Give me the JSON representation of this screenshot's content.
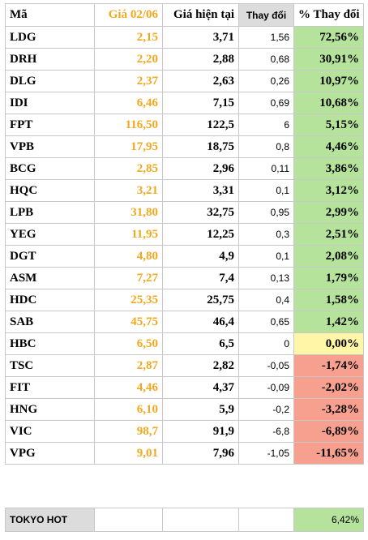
{
  "header": {
    "code": "Mã",
    "old_price": "Giá 02/06",
    "current_price": "Giá hiện tại",
    "change": "Thay đổi",
    "pct_change": "% Thay đổi"
  },
  "rows": [
    {
      "code": "LDG",
      "old": "2,15",
      "cur": "3,71",
      "chg": "1,56",
      "pct": "72,56%",
      "status": "pos"
    },
    {
      "code": "DRH",
      "old": "2,20",
      "cur": "2,88",
      "chg": "0,68",
      "pct": "30,91%",
      "status": "pos"
    },
    {
      "code": "DLG",
      "old": "2,37",
      "cur": "2,63",
      "chg": "0,26",
      "pct": "10,97%",
      "status": "pos"
    },
    {
      "code": "IDI",
      "old": "6,46",
      "cur": "7,15",
      "chg": "0,69",
      "pct": "10,68%",
      "status": "pos"
    },
    {
      "code": "FPT",
      "old": "116,50",
      "cur": "122,5",
      "chg": "6",
      "pct": "5,15%",
      "status": "pos"
    },
    {
      "code": "VPB",
      "old": "17,95",
      "cur": "18,75",
      "chg": "0,8",
      "pct": "4,46%",
      "status": "pos"
    },
    {
      "code": "BCG",
      "old": "2,85",
      "cur": "2,96",
      "chg": "0,11",
      "pct": "3,86%",
      "status": "pos"
    },
    {
      "code": "HQC",
      "old": "3,21",
      "cur": "3,31",
      "chg": "0,1",
      "pct": "3,12%",
      "status": "pos"
    },
    {
      "code": "LPB",
      "old": "31,80",
      "cur": "32,75",
      "chg": "0,95",
      "pct": "2,99%",
      "status": "pos"
    },
    {
      "code": "YEG",
      "old": "11,95",
      "cur": "12,25",
      "chg": "0,3",
      "pct": "2,51%",
      "status": "pos"
    },
    {
      "code": "DGT",
      "old": "4,80",
      "cur": "4,9",
      "chg": "0,1",
      "pct": "2,08%",
      "status": "pos"
    },
    {
      "code": "ASM",
      "old": "7,27",
      "cur": "7,4",
      "chg": "0,13",
      "pct": "1,79%",
      "status": "pos"
    },
    {
      "code": "HDC",
      "old": "25,35",
      "cur": "25,75",
      "chg": "0,4",
      "pct": "1,58%",
      "status": "pos"
    },
    {
      "code": "SAB",
      "old": "45,75",
      "cur": "46,4",
      "chg": "0,65",
      "pct": "1,42%",
      "status": "pos"
    },
    {
      "code": "HBC",
      "old": "6,50",
      "cur": "6,5",
      "chg": "0",
      "pct": "0,00%",
      "status": "zero"
    },
    {
      "code": "TSC",
      "old": "2,87",
      "cur": "2,82",
      "chg": "-0,05",
      "pct": "-1,74%",
      "status": "neg"
    },
    {
      "code": "FIT",
      "old": "4,46",
      "cur": "4,37",
      "chg": "-0,09",
      "pct": "-2,02%",
      "status": "neg"
    },
    {
      "code": "HNG",
      "old": "6,10",
      "cur": "5,9",
      "chg": "-0,2",
      "pct": "-3,28%",
      "status": "neg"
    },
    {
      "code": "VIC",
      "old": "98,7",
      "cur": "91,9",
      "chg": "-6,8",
      "pct": "-6,89%",
      "status": "neg"
    },
    {
      "code": "VPG",
      "old": "9,01",
      "cur": "7,96",
      "chg": "-1,05",
      "pct": "-11,65%",
      "status": "neg"
    }
  ],
  "footer": {
    "label": "TOKYO HOT",
    "pct": "6,42%"
  },
  "colors": {
    "old_price_text": "#f2a81d",
    "positive_fill": "#b6e39c",
    "zero_fill": "#fff6a8",
    "negative_fill": "#f8a090",
    "header_gray": "#dcdcdc"
  }
}
